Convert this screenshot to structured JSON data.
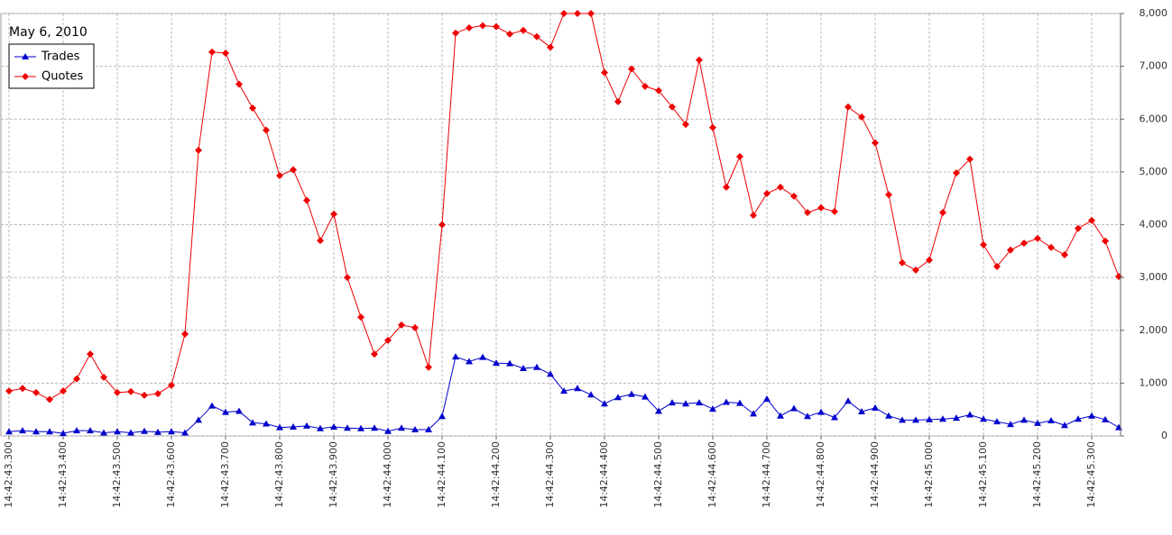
{
  "chart_data": {
    "type": "line",
    "title": "May 6, 2010",
    "categories": [
      "14:42:43.300",
      null,
      null,
      null,
      "14:42:43.400",
      null,
      null,
      null,
      "14:42:43.500",
      null,
      null,
      null,
      "14:42:43.600",
      null,
      null,
      null,
      "14:42:43.700",
      null,
      null,
      null,
      "14:42:43.800",
      null,
      null,
      null,
      "14:42:43.900",
      null,
      null,
      null,
      "14:42:44.000",
      null,
      null,
      null,
      "14:42:44.100",
      null,
      null,
      null,
      "14:42:44.200",
      null,
      null,
      null,
      "14:42:44.300",
      null,
      null,
      null,
      "14:42:44.400",
      null,
      null,
      null,
      "14:42:44.500",
      null,
      null,
      null,
      "14:42:44.600",
      null,
      null,
      null,
      "14:42:44.700",
      null,
      null,
      null,
      "14:42:44.800",
      null,
      null,
      null,
      "14:42:44.900",
      null,
      null,
      null,
      "14:42:45.000",
      null,
      null,
      null,
      "14:42:45.100",
      null,
      null,
      null,
      "14:42:45.200",
      null,
      null,
      null,
      "14:42:45.300",
      null,
      null
    ],
    "series": [
      {
        "name": "Trades",
        "color": "#0000cc",
        "marker": "triangle",
        "values": [
          80,
          100,
          80,
          80,
          50,
          100,
          100,
          60,
          80,
          60,
          90,
          70,
          80,
          60,
          300,
          570,
          450,
          470,
          250,
          230,
          160,
          170,
          190,
          140,
          170,
          150,
          140,
          150,
          90,
          150,
          120,
          120,
          370,
          1500,
          1410,
          1490,
          1380,
          1370,
          1280,
          1300,
          1170,
          850,
          900,
          780,
          610,
          730,
          790,
          740,
          470,
          630,
          610,
          630,
          510,
          640,
          620,
          420,
          700,
          380,
          520,
          370,
          450,
          350,
          660,
          460,
          530,
          380,
          300,
          300,
          310,
          320,
          340,
          400,
          320,
          270,
          220,
          300,
          240,
          290,
          200,
          320,
          380,
          310,
          160
        ]
      },
      {
        "name": "Quotes",
        "color": "#ee0000",
        "marker": "diamond",
        "values": [
          850,
          900,
          820,
          690,
          850,
          1080,
          1550,
          1110,
          820,
          840,
          770,
          800,
          960,
          1930,
          5410,
          7270,
          7250,
          6660,
          6210,
          5790,
          4930,
          5040,
          4460,
          3700,
          4200,
          3000,
          2250,
          1550,
          1810,
          2100,
          2050,
          1300,
          4000,
          7630,
          7730,
          7770,
          7750,
          7610,
          7680,
          7560,
          7360,
          8000,
          8000,
          8000,
          6880,
          6330,
          6950,
          6620,
          6540,
          6230,
          5900,
          7120,
          5840,
          4710,
          5290,
          4180,
          4590,
          4710,
          4540,
          4230,
          4320,
          4250,
          6230,
          6040,
          5550,
          4570,
          3280,
          3140,
          3330,
          4230,
          4980,
          5240,
          3620,
          3210,
          3520,
          3650,
          3740,
          3570,
          3430,
          3930,
          4080,
          3690,
          3020
        ]
      }
    ],
    "ylim": [
      0,
      8000
    ],
    "yticks": [
      0,
      {
        "value": 1000,
        "label": "1,000"
      },
      {
        "value": 2000,
        "label": "2,000"
      },
      {
        "value": 3000,
        "label": "3,000"
      },
      {
        "value": 4000,
        "label": "4,000"
      },
      {
        "value": 5000,
        "label": "5,000"
      },
      {
        "value": 6000,
        "label": "6,000"
      },
      {
        "value": 7000,
        "label": "7,000"
      },
      {
        "value": 8000,
        "label": "8,000"
      }
    ],
    "grid": true,
    "legend": "upper left"
  }
}
